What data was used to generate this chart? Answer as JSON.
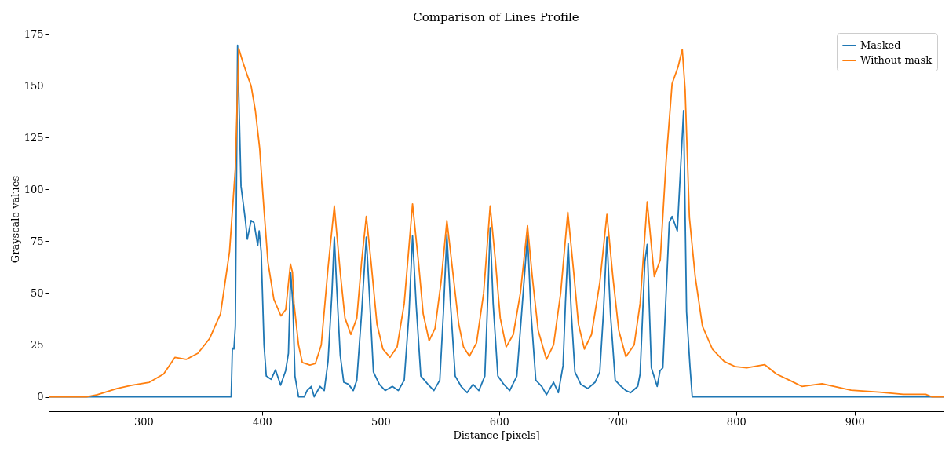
{
  "chart_data": {
    "type": "line",
    "title": "Comparison of Lines Profile",
    "xlabel": "Distance [pixels]",
    "ylabel": "Grayscale values",
    "xlim": [
      220,
      975
    ],
    "ylim": [
      -7,
      178.5
    ],
    "xticks": [
      300,
      400,
      500,
      600,
      700,
      800,
      900
    ],
    "yticks": [
      0,
      25,
      50,
      75,
      100,
      125,
      150,
      175
    ],
    "grid": false,
    "legend": "top right",
    "marker": "none",
    "line_style": "solid",
    "series": [
      {
        "name": "Masked",
        "color": "#1f77b4",
        "x": [
          220,
          374,
          375,
          376.3,
          377.5,
          379.4,
          382.3,
          386,
          387.6,
          390.8,
          393.2,
          396.4,
          397.6,
          399.3,
          401.7,
          403.6,
          407.7,
          411.4,
          415.7,
          419.9,
          422.3,
          424.2,
          426,
          427.8,
          430.8,
          435.6,
          438,
          441.6,
          444,
          449,
          452.5,
          455.7,
          459,
          461,
          463,
          466,
          469,
          473,
          477,
          480,
          484,
          488,
          491,
          494,
          499,
          504,
          510,
          515,
          520,
          524,
          527,
          530,
          534,
          540,
          545,
          550,
          553,
          556,
          559,
          563,
          568,
          573,
          578,
          583,
          588,
          590,
          592.5,
          595,
          599,
          604,
          609,
          615,
          619,
          624,
          627,
          631,
          636,
          640,
          646,
          650,
          654,
          656,
          658.3,
          661,
          664,
          669,
          675,
          681,
          685,
          688,
          691,
          694,
          698,
          703,
          707,
          711,
          717,
          719,
          723,
          725,
          728.5,
          733.4,
          735.8,
          738.2,
          743.6,
          746,
          750.4,
          755.7,
          758.2,
          761.1,
          763,
          975
        ],
        "values": [
          0,
          0,
          23.5,
          23,
          34,
          169.5,
          101.6,
          85,
          76,
          85,
          84,
          73,
          80,
          70,
          25,
          10,
          8.4,
          13,
          5.6,
          12.5,
          21,
          60,
          45,
          10,
          0,
          0,
          3,
          5,
          0,
          5,
          3,
          17,
          50,
          77,
          53,
          20,
          7,
          6,
          3,
          8,
          40,
          77,
          45,
          12,
          6,
          3,
          5,
          3,
          8,
          40,
          77.6,
          45,
          10,
          6,
          3,
          8,
          40,
          78.3,
          45,
          10,
          5,
          2,
          6,
          3,
          10,
          40,
          81.5,
          45,
          10,
          6,
          3,
          10,
          40,
          78,
          40,
          8,
          5,
          1,
          7,
          2,
          15,
          45,
          74,
          40,
          12,
          6,
          4,
          7,
          12,
          40,
          77,
          40,
          8,
          5,
          3,
          2,
          5,
          11,
          65,
          73.5,
          14,
          5,
          12.5,
          14,
          84,
          87,
          80,
          138,
          41,
          14.5,
          0,
          0
        ]
      },
      {
        "name": "Without mask",
        "color": "#ff7f0e",
        "x": [
          220,
          252,
          261,
          278,
          290,
          305,
          317,
          326.6,
          336,
          346,
          355.7,
          365,
          372.6,
          377.5,
          380.4,
          383.5,
          387.6,
          390.8,
          394.4,
          398,
          401.7,
          405,
          410,
          416,
          420,
          424,
          425.7,
          427,
          430.8,
          434,
          440.4,
          445,
          450,
          455.7,
          461,
          466,
          470,
          475,
          480,
          484,
          488,
          492,
          497,
          502,
          508,
          514,
          520,
          527,
          532,
          536,
          541,
          546,
          551,
          556,
          561,
          566,
          570,
          575,
          581,
          587,
          592.5,
          597,
          601,
          606,
          612,
          618,
          624,
          628,
          633,
          640,
          646,
          652,
          658,
          663,
          667,
          672,
          678,
          685,
          691,
          696,
          701,
          707,
          714,
          719,
          725,
          731,
          736,
          741,
          746,
          751,
          754.6,
          757,
          760.6,
          765.5,
          771.6,
          780,
          790,
          799.5,
          809,
          824,
          834,
          846,
          855.5,
          872.5,
          897,
          921,
          941,
          960,
          965,
          975
        ],
        "values": [
          0,
          0,
          1,
          4,
          5.5,
          7,
          11,
          19,
          18,
          21,
          28,
          40,
          70,
          110,
          168,
          162,
          155,
          150,
          138,
          120,
          90,
          65,
          47,
          39,
          42,
          64,
          60,
          45,
          25,
          16.5,
          15.3,
          16,
          25,
          62,
          92,
          60,
          38,
          30,
          38,
          65,
          87,
          65,
          35,
          23,
          19,
          24,
          45,
          93,
          65,
          40,
          27,
          33,
          55,
          85,
          60,
          35,
          24,
          19.6,
          26,
          50,
          92,
          65,
          38,
          24,
          30,
          50,
          82.5,
          58,
          32,
          18,
          25,
          50,
          89,
          60,
          35,
          23,
          30,
          55,
          88,
          58,
          32,
          19.3,
          25,
          45,
          94,
          58,
          66,
          114,
          151,
          159,
          167.5,
          148,
          86.5,
          58,
          34,
          23,
          17,
          14.5,
          14,
          15.5,
          11,
          7.7,
          5,
          6.3,
          3.2,
          2.2,
          1.2,
          1.2,
          0,
          0
        ]
      }
    ]
  }
}
